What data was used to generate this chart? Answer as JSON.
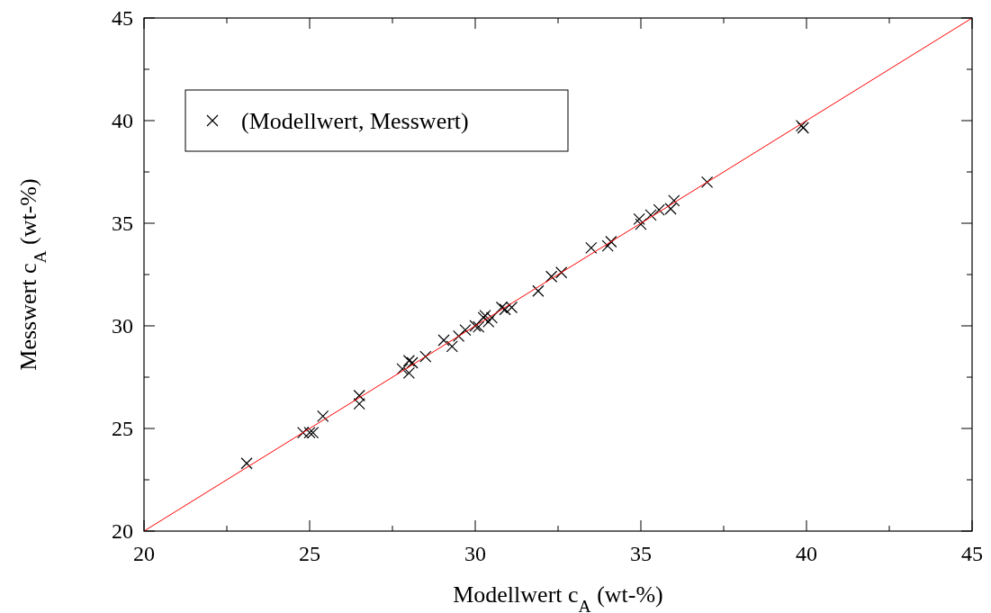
{
  "chart_data": {
    "type": "scatter",
    "xlabel": "Modellwert c$_{A}$ (wt-%)",
    "ylabel": "Messwert c$_{A}$ (wt-%)",
    "xlim": [
      20,
      45
    ],
    "ylim": [
      20,
      45
    ],
    "xticks": [
      20,
      25,
      30,
      35,
      40,
      45
    ],
    "yticks": [
      20,
      25,
      30,
      35,
      40,
      45
    ],
    "grid": false,
    "legend": "top left",
    "marker": "cross",
    "series": [
      {
        "name": "(Modellwert, Messwert)",
        "color": "#000000",
        "x": [
          23.1,
          24.8,
          25.0,
          25.1,
          25.4,
          26.5,
          26.5,
          27.8,
          28.0,
          28.0,
          28.1,
          28.5,
          29.05,
          29.3,
          29.5,
          29.7,
          30.0,
          30.1,
          30.25,
          30.3,
          30.4,
          30.5,
          30.8,
          30.9,
          31.1,
          31.9,
          32.3,
          32.6,
          33.5,
          34.0,
          34.1,
          34.95,
          35.0,
          35.3,
          35.55,
          35.9,
          36.0,
          37.0,
          39.85,
          39.9
        ],
        "values": [
          23.3,
          24.8,
          24.8,
          24.8,
          25.6,
          26.6,
          26.2,
          27.9,
          27.7,
          28.3,
          28.2,
          28.5,
          29.3,
          29.0,
          29.5,
          29.8,
          30.0,
          29.95,
          30.4,
          30.5,
          30.2,
          30.4,
          30.9,
          30.8,
          30.9,
          31.7,
          32.4,
          32.6,
          33.8,
          33.9,
          34.1,
          35.2,
          34.95,
          35.4,
          35.65,
          35.7,
          36.1,
          37.0,
          39.75,
          39.65
        ]
      },
      {
        "type": "line",
        "color": "#ff0000",
        "marker": "none",
        "x": [
          20,
          45
        ],
        "values": [
          20,
          45
        ]
      }
    ]
  }
}
